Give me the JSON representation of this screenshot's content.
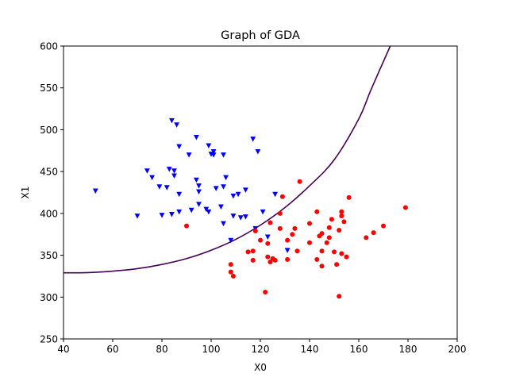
{
  "chart_data": {
    "type": "scatter",
    "title": "Graph of GDA",
    "xlabel": "X0",
    "ylabel": "X1",
    "xlim": [
      40,
      200
    ],
    "ylim": [
      250,
      600
    ],
    "xticks": [
      40,
      60,
      80,
      100,
      120,
      140,
      160,
      180,
      200
    ],
    "yticks": [
      250,
      300,
      350,
      400,
      450,
      500,
      550,
      600
    ],
    "grid": false,
    "legend": "none",
    "series": [
      {
        "marker": "triangle-down",
        "color": "#0000ff",
        "points": [
          [
            53,
            427
          ],
          [
            70,
            397
          ],
          [
            74,
            451
          ],
          [
            76,
            443
          ],
          [
            79,
            432
          ],
          [
            80,
            398
          ],
          [
            82,
            431
          ],
          [
            83,
            453
          ],
          [
            84,
            399
          ],
          [
            84,
            511
          ],
          [
            85,
            445
          ],
          [
            85,
            451
          ],
          [
            86,
            506
          ],
          [
            87,
            480
          ],
          [
            87,
            423
          ],
          [
            87,
            402
          ],
          [
            91,
            470
          ],
          [
            92,
            404
          ],
          [
            94,
            440
          ],
          [
            94,
            491
          ],
          [
            95,
            426
          ],
          [
            95,
            433
          ],
          [
            95,
            411
          ],
          [
            98,
            405
          ],
          [
            99,
            481
          ],
          [
            99,
            402
          ],
          [
            100,
            471
          ],
          [
            101,
            470
          ],
          [
            101,
            474
          ],
          [
            102,
            430
          ],
          [
            104,
            408
          ],
          [
            105,
            388
          ],
          [
            105,
            470
          ],
          [
            105,
            432
          ],
          [
            106,
            443
          ],
          [
            108,
            368
          ],
          [
            109,
            421
          ],
          [
            109,
            397
          ],
          [
            111,
            423
          ],
          [
            112,
            395
          ],
          [
            114,
            428
          ],
          [
            114,
            396
          ],
          [
            117,
            489
          ],
          [
            118,
            382
          ],
          [
            119,
            474
          ],
          [
            121,
            402
          ],
          [
            123,
            372
          ],
          [
            126,
            423
          ],
          [
            131,
            356
          ]
        ]
      },
      {
        "marker": "circle",
        "color": "#ff0000",
        "points": [
          [
            90,
            385
          ],
          [
            108,
            339
          ],
          [
            108,
            330
          ],
          [
            109,
            325
          ],
          [
            115,
            354
          ],
          [
            117,
            344
          ],
          [
            117,
            355
          ],
          [
            118,
            379
          ],
          [
            120,
            368
          ],
          [
            122,
            306
          ],
          [
            123,
            364
          ],
          [
            123,
            348
          ],
          [
            124,
            342
          ],
          [
            124,
            389
          ],
          [
            125,
            346
          ],
          [
            126,
            344
          ],
          [
            128,
            382
          ],
          [
            128,
            400
          ],
          [
            129,
            420
          ],
          [
            131,
            368
          ],
          [
            131,
            345
          ],
          [
            133,
            375
          ],
          [
            134,
            382
          ],
          [
            135,
            355
          ],
          [
            136,
            438
          ],
          [
            140,
            388
          ],
          [
            140,
            365
          ],
          [
            143,
            345
          ],
          [
            143,
            402
          ],
          [
            144,
            373
          ],
          [
            145,
            376
          ],
          [
            145,
            337
          ],
          [
            145,
            355
          ],
          [
            147,
            365
          ],
          [
            148,
            371
          ],
          [
            148,
            383
          ],
          [
            149,
            393
          ],
          [
            150,
            354
          ],
          [
            151,
            339
          ],
          [
            152,
            380
          ],
          [
            152,
            301
          ],
          [
            153,
            352
          ],
          [
            153,
            402
          ],
          [
            153,
            397
          ],
          [
            154,
            390
          ],
          [
            155,
            348
          ],
          [
            156,
            419
          ],
          [
            163,
            371
          ],
          [
            166,
            377
          ],
          [
            170,
            385
          ],
          [
            179,
            407
          ]
        ]
      }
    ],
    "boundary": {
      "color": "#440154",
      "points": [
        [
          40,
          329
        ],
        [
          50,
          329.3
        ],
        [
          60,
          331
        ],
        [
          70,
          334
        ],
        [
          80,
          339
        ],
        [
          90,
          346
        ],
        [
          100,
          356
        ],
        [
          110,
          369
        ],
        [
          120,
          386
        ],
        [
          130,
          407
        ],
        [
          140,
          433
        ],
        [
          150,
          464
        ],
        [
          160,
          513
        ],
        [
          165,
          548
        ],
        [
          172.8,
          600
        ]
      ]
    }
  }
}
